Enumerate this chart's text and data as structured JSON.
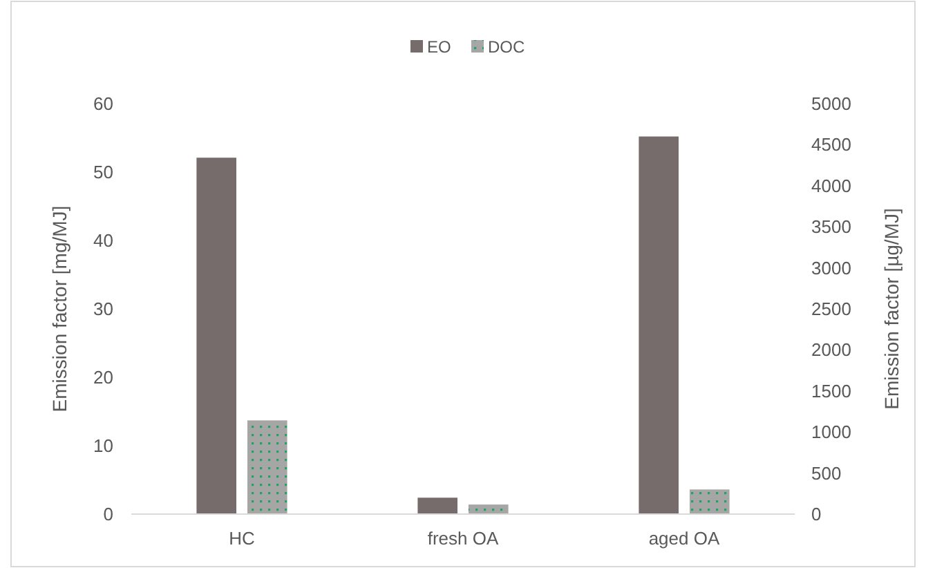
{
  "chart_data": {
    "type": "bar",
    "categories": [
      "HC",
      "fresh OA",
      "aged OA"
    ],
    "series": [
      {
        "name": "EO",
        "color": "#766c6c",
        "values": [
          52.1,
          2.4,
          55.2
        ]
      },
      {
        "name": "DOC",
        "color": "#a6a6a6",
        "values": [
          13.7,
          1.4,
          3.6
        ]
      }
    ],
    "ylabel": "Emission factor [mg/MJ]",
    "y2label": "Emission factor [µg/MJ]",
    "ylim": [
      0,
      60
    ],
    "yticks": [
      0,
      10,
      20,
      30,
      40,
      50,
      60
    ],
    "y2lim": [
      0,
      5000
    ],
    "y2ticks": [
      0,
      500,
      1000,
      1500,
      2000,
      2500,
      3000,
      3500,
      4000,
      4500,
      5000
    ],
    "legend": "top",
    "grid": false
  }
}
